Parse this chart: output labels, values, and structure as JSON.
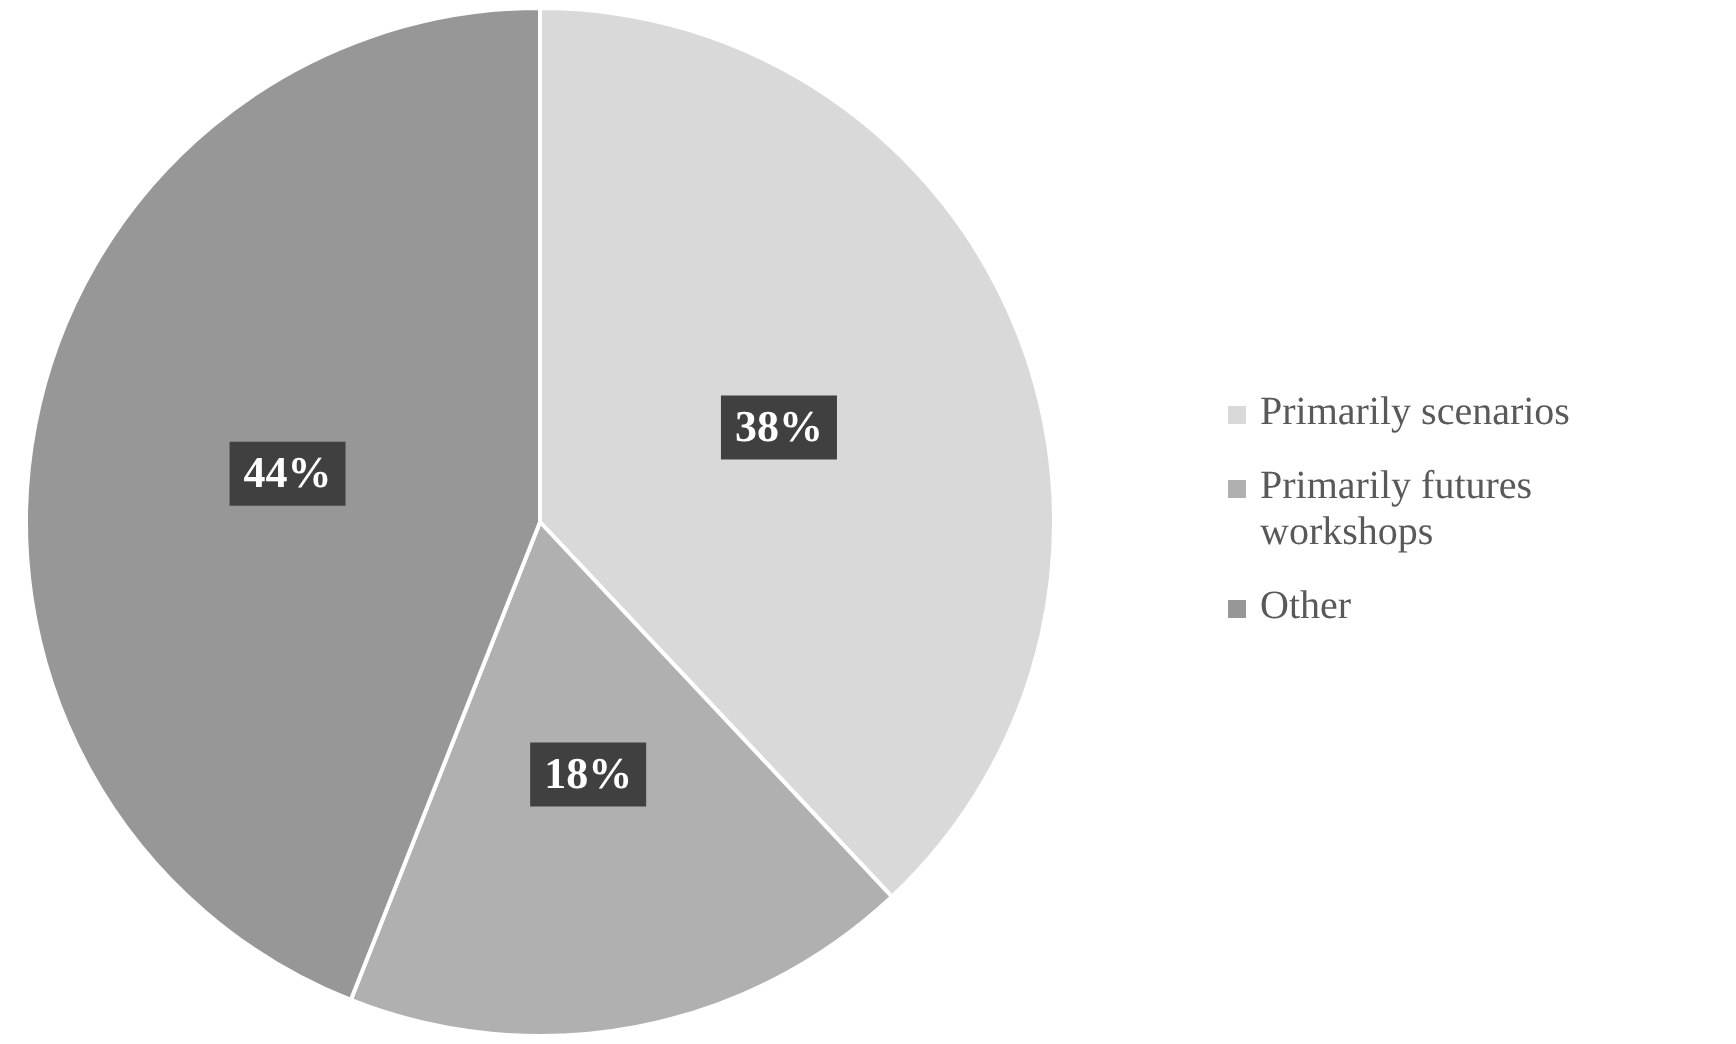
{
  "chart_data": {
    "type": "pie",
    "categories": [
      "Primarily scenarios",
      "Primarily futures workshops",
      "Other"
    ],
    "values": [
      38,
      18,
      44
    ],
    "colors": [
      "#d9d9d9",
      "#b0b0b0",
      "#979797"
    ],
    "value_labels": [
      "38%",
      "18%",
      "44%"
    ],
    "legend": "right"
  }
}
